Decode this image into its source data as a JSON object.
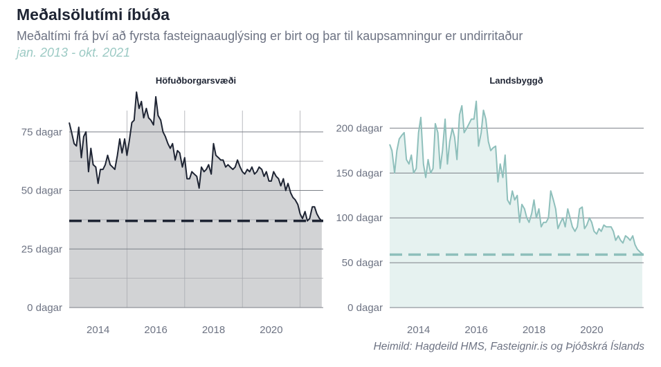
{
  "header": {
    "title": "Meðalsölutími íbúða",
    "subtitle": "Meðaltími frá því að fyrsta fasteignaauglýsing er birt og þar til kaupsamningur er undirritaður",
    "period": "jan. 2013 - okt. 2021"
  },
  "footer": {
    "source": "Heimild: Hagdeild HMS, Fasteignir.is og Þjóðskrá Íslands"
  },
  "colors": {
    "capital_line": "#1e2433",
    "capital_fill": "#d2d3d5",
    "regional_line": "#8ebfbb",
    "regional_fill": "#e6f2f0",
    "grid": "#7b7f87",
    "minor_grid": "#a9abb0"
  },
  "chart_data": [
    {
      "type": "area",
      "title": "Höfuðborgarsvæði",
      "xlim": [
        2013,
        2021.8
      ],
      "ylim": [
        0,
        90
      ],
      "x_ticks": [
        2014,
        2016,
        2018,
        2020
      ],
      "x_tick_labels": [
        "2014",
        "2016",
        "2018",
        "2020"
      ],
      "y_ticks": [
        0,
        25,
        50,
        75
      ],
      "y_tick_labels": [
        "0 dagar",
        "25 dagar",
        "50 dagar",
        "75 dagar"
      ],
      "reference_line": 37,
      "x": [
        2013.0,
        2013.08,
        2013.17,
        2013.25,
        2013.33,
        2013.42,
        2013.5,
        2013.58,
        2013.67,
        2013.75,
        2013.83,
        2013.92,
        2014.0,
        2014.08,
        2014.17,
        2014.25,
        2014.33,
        2014.42,
        2014.5,
        2014.58,
        2014.67,
        2014.75,
        2014.83,
        2014.92,
        2015.0,
        2015.08,
        2015.17,
        2015.25,
        2015.33,
        2015.42,
        2015.5,
        2015.58,
        2015.67,
        2015.75,
        2015.83,
        2015.92,
        2016.0,
        2016.08,
        2016.17,
        2016.25,
        2016.33,
        2016.42,
        2016.5,
        2016.58,
        2016.67,
        2016.75,
        2016.83,
        2016.92,
        2017.0,
        2017.08,
        2017.17,
        2017.25,
        2017.33,
        2017.42,
        2017.5,
        2017.58,
        2017.67,
        2017.75,
        2017.83,
        2017.92,
        2018.0,
        2018.08,
        2018.17,
        2018.25,
        2018.33,
        2018.42,
        2018.5,
        2018.58,
        2018.67,
        2018.75,
        2018.83,
        2018.92,
        2019.0,
        2019.08,
        2019.17,
        2019.25,
        2019.33,
        2019.42,
        2019.5,
        2019.58,
        2019.67,
        2019.75,
        2019.83,
        2019.92,
        2020.0,
        2020.08,
        2020.17,
        2020.25,
        2020.33,
        2020.42,
        2020.5,
        2020.58,
        2020.67,
        2020.75,
        2020.83,
        2020.92,
        2021.0,
        2021.08,
        2021.17,
        2021.25,
        2021.33,
        2021.42,
        2021.5,
        2021.58,
        2021.67,
        2021.75
      ],
      "series": [
        {
          "values": [
            79,
            75,
            70,
            69,
            77,
            64,
            73,
            75,
            58,
            68,
            61,
            60,
            53,
            59,
            59,
            61,
            65,
            61,
            60,
            59,
            65,
            72,
            66,
            72,
            65,
            71,
            79,
            80,
            92,
            85,
            88,
            81,
            85,
            81,
            80,
            78,
            90,
            82,
            80,
            75,
            73,
            70,
            68,
            70,
            63,
            67,
            66,
            60,
            64,
            55,
            55,
            58,
            57,
            56,
            51,
            60,
            58,
            59,
            61,
            57,
            70,
            65,
            64,
            63,
            63,
            60,
            61,
            60,
            59,
            60,
            63,
            60,
            58,
            57,
            59,
            58,
            60,
            57,
            58,
            60,
            59,
            56,
            58,
            54,
            54,
            58,
            56,
            55,
            52,
            55,
            50,
            53,
            49,
            47,
            46,
            44,
            40,
            38,
            41,
            37,
            38,
            43,
            43,
            40,
            38,
            37
          ]
        }
      ]
    },
    {
      "type": "area",
      "title": "Landsbyggð",
      "xlim": [
        2013,
        2021.8
      ],
      "ylim": [
        0,
        235
      ],
      "x_ticks": [
        2014,
        2016,
        2018,
        2020
      ],
      "x_tick_labels": [
        "2014",
        "2016",
        "2018",
        "2020"
      ],
      "y_ticks": [
        0,
        50,
        100,
        150,
        200
      ],
      "y_tick_labels": [
        "0 dagar",
        "50 dagar",
        "100 dagar",
        "150 dagar",
        "200 dagar"
      ],
      "reference_line": 59,
      "x": [
        2013.0,
        2013.08,
        2013.17,
        2013.25,
        2013.33,
        2013.42,
        2013.5,
        2013.58,
        2013.67,
        2013.75,
        2013.83,
        2013.92,
        2014.0,
        2014.08,
        2014.17,
        2014.25,
        2014.33,
        2014.42,
        2014.5,
        2014.58,
        2014.67,
        2014.75,
        2014.83,
        2014.92,
        2015.0,
        2015.08,
        2015.17,
        2015.25,
        2015.33,
        2015.42,
        2015.5,
        2015.58,
        2015.67,
        2015.75,
        2015.83,
        2015.92,
        2016.0,
        2016.08,
        2016.17,
        2016.25,
        2016.33,
        2016.42,
        2016.5,
        2016.58,
        2016.67,
        2016.75,
        2016.83,
        2016.92,
        2017.0,
        2017.08,
        2017.17,
        2017.25,
        2017.33,
        2017.42,
        2017.5,
        2017.58,
        2017.67,
        2017.75,
        2017.83,
        2017.92,
        2018.0,
        2018.08,
        2018.17,
        2018.25,
        2018.33,
        2018.42,
        2018.5,
        2018.58,
        2018.67,
        2018.75,
        2018.83,
        2018.92,
        2019.0,
        2019.08,
        2019.17,
        2019.25,
        2019.33,
        2019.42,
        2019.5,
        2019.58,
        2019.67,
        2019.75,
        2019.83,
        2019.92,
        2020.0,
        2020.08,
        2020.17,
        2020.25,
        2020.33,
        2020.42,
        2020.5,
        2020.58,
        2020.67,
        2020.75,
        2020.83,
        2020.92,
        2021.0,
        2021.08,
        2021.17,
        2021.25,
        2021.33,
        2021.42,
        2021.5,
        2021.58,
        2021.67,
        2021.75
      ],
      "series": [
        {
          "values": [
            182,
            175,
            150,
            175,
            188,
            192,
            195,
            165,
            160,
            170,
            150,
            155,
            195,
            212,
            160,
            145,
            165,
            150,
            155,
            205,
            195,
            155,
            175,
            210,
            160,
            185,
            200,
            190,
            165,
            215,
            225,
            195,
            200,
            205,
            210,
            210,
            230,
            180,
            195,
            220,
            210,
            185,
            175,
            178,
            180,
            140,
            160,
            145,
            170,
            120,
            115,
            130,
            120,
            125,
            95,
            115,
            110,
            100,
            95,
            105,
            120,
            100,
            110,
            90,
            95,
            95,
            100,
            130,
            120,
            110,
            88,
            95,
            100,
            90,
            110,
            100,
            90,
            85,
            90,
            110,
            112,
            88,
            92,
            100,
            95,
            85,
            82,
            88,
            85,
            92,
            90,
            90,
            90,
            85,
            75,
            80,
            75,
            72,
            80,
            78,
            75,
            80,
            70,
            65,
            62,
            60
          ]
        }
      ]
    }
  ]
}
